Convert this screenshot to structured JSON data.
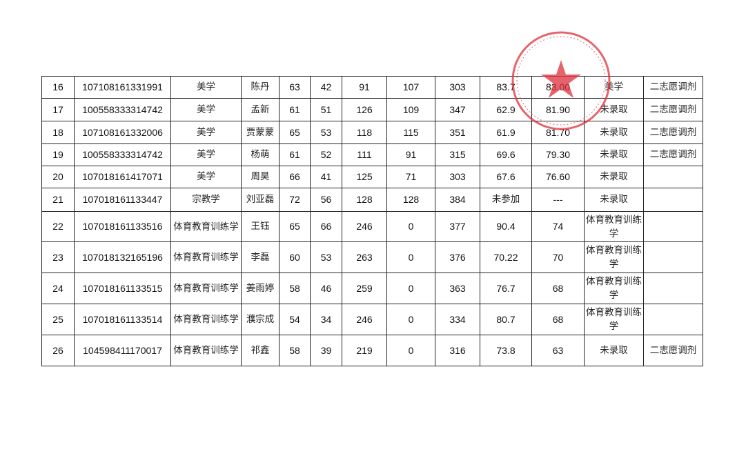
{
  "table": {
    "rows": [
      [
        "16",
        "107108161331991",
        "美学",
        "陈丹",
        "63",
        "42",
        "91",
        "107",
        "303",
        "83.7",
        "83.00",
        "美学",
        "二志愿调剂"
      ],
      [
        "17",
        "100558333314742",
        "美学",
        "孟新",
        "61",
        "51",
        "126",
        "109",
        "347",
        "62.9",
        "81.90",
        "未录取",
        "二志愿调剂"
      ],
      [
        "18",
        "107108161332006",
        "美学",
        "贾蒙蒙",
        "65",
        "53",
        "118",
        "115",
        "351",
        "61.9",
        "81.70",
        "未录取",
        "二志愿调剂"
      ],
      [
        "19",
        "100558333314742",
        "美学",
        "杨萌",
        "61",
        "52",
        "111",
        "91",
        "315",
        "69.6",
        "79.30",
        "未录取",
        "二志愿调剂"
      ],
      [
        "20",
        "107018161417071",
        "美学",
        "周昊",
        "66",
        "41",
        "125",
        "71",
        "303",
        "67.6",
        "76.60",
        "未录取",
        ""
      ],
      [
        "21",
        "107018161133447",
        "宗教学",
        "刘亚磊",
        "72",
        "56",
        "128",
        "128",
        "384",
        "未参加",
        "---",
        "未录取",
        ""
      ],
      [
        "22",
        "107018161133516",
        "体育教育训练学",
        "王钰",
        "65",
        "66",
        "246",
        "0",
        "377",
        "90.4",
        "74",
        "体育教育训练学",
        ""
      ],
      [
        "23",
        "107018132165196",
        "体育教育训练学",
        "李磊",
        "60",
        "53",
        "263",
        "0",
        "376",
        "70.22",
        "70",
        "体育教育训练学",
        ""
      ],
      [
        "24",
        "107018161133515",
        "体育教育训练学",
        "姜雨婷",
        "58",
        "46",
        "259",
        "0",
        "363",
        "76.7",
        "68",
        "体育教育训练学",
        ""
      ],
      [
        "25",
        "107018161133514",
        "体育教育训练学",
        "濮宗成",
        "54",
        "34",
        "246",
        "0",
        "334",
        "80.7",
        "68",
        "体育教育训练学",
        ""
      ],
      [
        "26",
        "104598411170017",
        "体育教育训练学",
        "祁鑫",
        "58",
        "39",
        "219",
        "0",
        "316",
        "73.8",
        "63",
        "未录取",
        "二志愿调剂"
      ]
    ]
  },
  "seal": {
    "color": "#e0303c",
    "icon": "star-icon"
  }
}
